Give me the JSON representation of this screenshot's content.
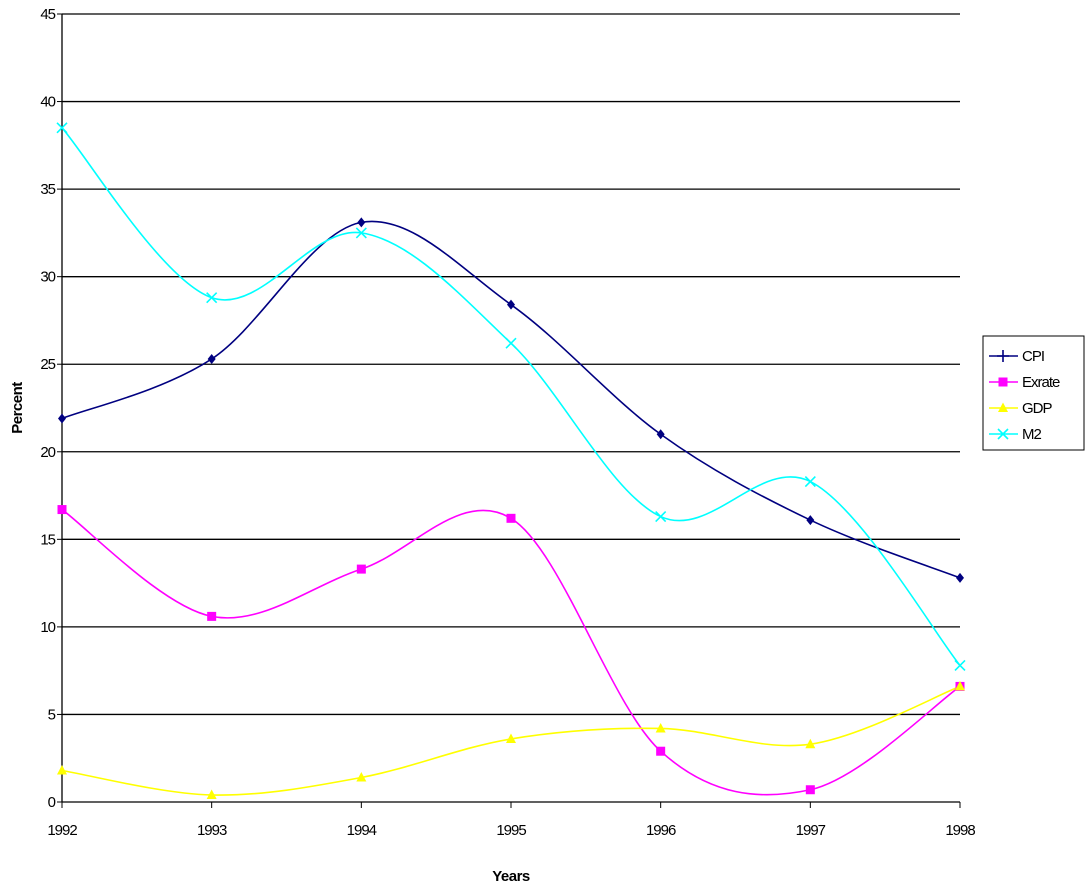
{
  "chart_data": {
    "type": "line",
    "title": "",
    "xlabel": "Years",
    "ylabel": "Percent",
    "x": [
      "1992",
      "1993",
      "1994",
      "1995",
      "1996",
      "1997",
      "1998"
    ],
    "ylim": [
      0,
      45
    ],
    "yticks": [
      "0",
      "5",
      "10",
      "15",
      "20",
      "25",
      "30",
      "35",
      "40",
      "45"
    ],
    "grid": "horizontal",
    "smooth": true,
    "legend_position": "right",
    "series": [
      {
        "name": "CPI",
        "values": [
          21.9,
          25.3,
          33.1,
          28.4,
          21.0,
          16.1,
          12.8
        ],
        "color": "#000080",
        "marker": "diamond"
      },
      {
        "name": "Exrate",
        "values": [
          16.7,
          10.6,
          13.3,
          16.2,
          2.9,
          0.7,
          6.6
        ],
        "color": "#ff00ff",
        "marker": "square"
      },
      {
        "name": "GDP",
        "values": [
          1.8,
          0.4,
          1.4,
          3.6,
          4.2,
          3.3,
          6.6
        ],
        "color": "#ffff00",
        "marker": "triangle"
      },
      {
        "name": "M2",
        "values": [
          38.5,
          28.8,
          32.5,
          26.2,
          16.3,
          18.3,
          7.8
        ],
        "color": "#00ffff",
        "marker": "x"
      }
    ]
  }
}
